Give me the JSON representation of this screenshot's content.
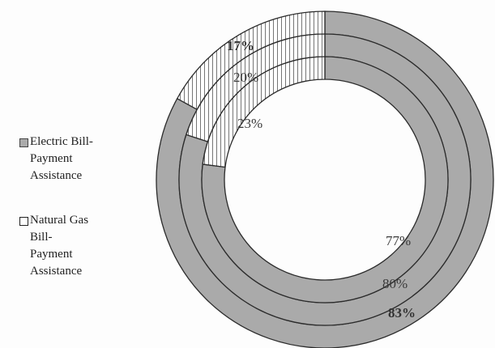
{
  "chart_data": {
    "type": "doughnut",
    "rings": [
      {
        "ring": "outer",
        "values": {
          "electric": 83,
          "gas": 17
        }
      },
      {
        "ring": "middle",
        "values": {
          "electric": 80,
          "gas": 20
        }
      },
      {
        "ring": "inner",
        "values": {
          "electric": 77,
          "gas": 23
        }
      }
    ],
    "series": [
      {
        "key": "electric",
        "name": "Electric Bill-\nPayment\nAssistance",
        "color": "#aaaaaa",
        "pattern": "solid"
      },
      {
        "key": "gas",
        "name": "Natural Gas\nBill-\nPayment\nAssistance",
        "color": "#ffffff",
        "pattern": "vertical-lines"
      }
    ],
    "labels": {
      "outer": {
        "electric": "83%",
        "gas": "17%"
      },
      "middle": {
        "electric": "80%",
        "gas": "20%"
      },
      "inner": {
        "electric": "77%",
        "gas": "23%"
      }
    },
    "legend_position": "left"
  }
}
